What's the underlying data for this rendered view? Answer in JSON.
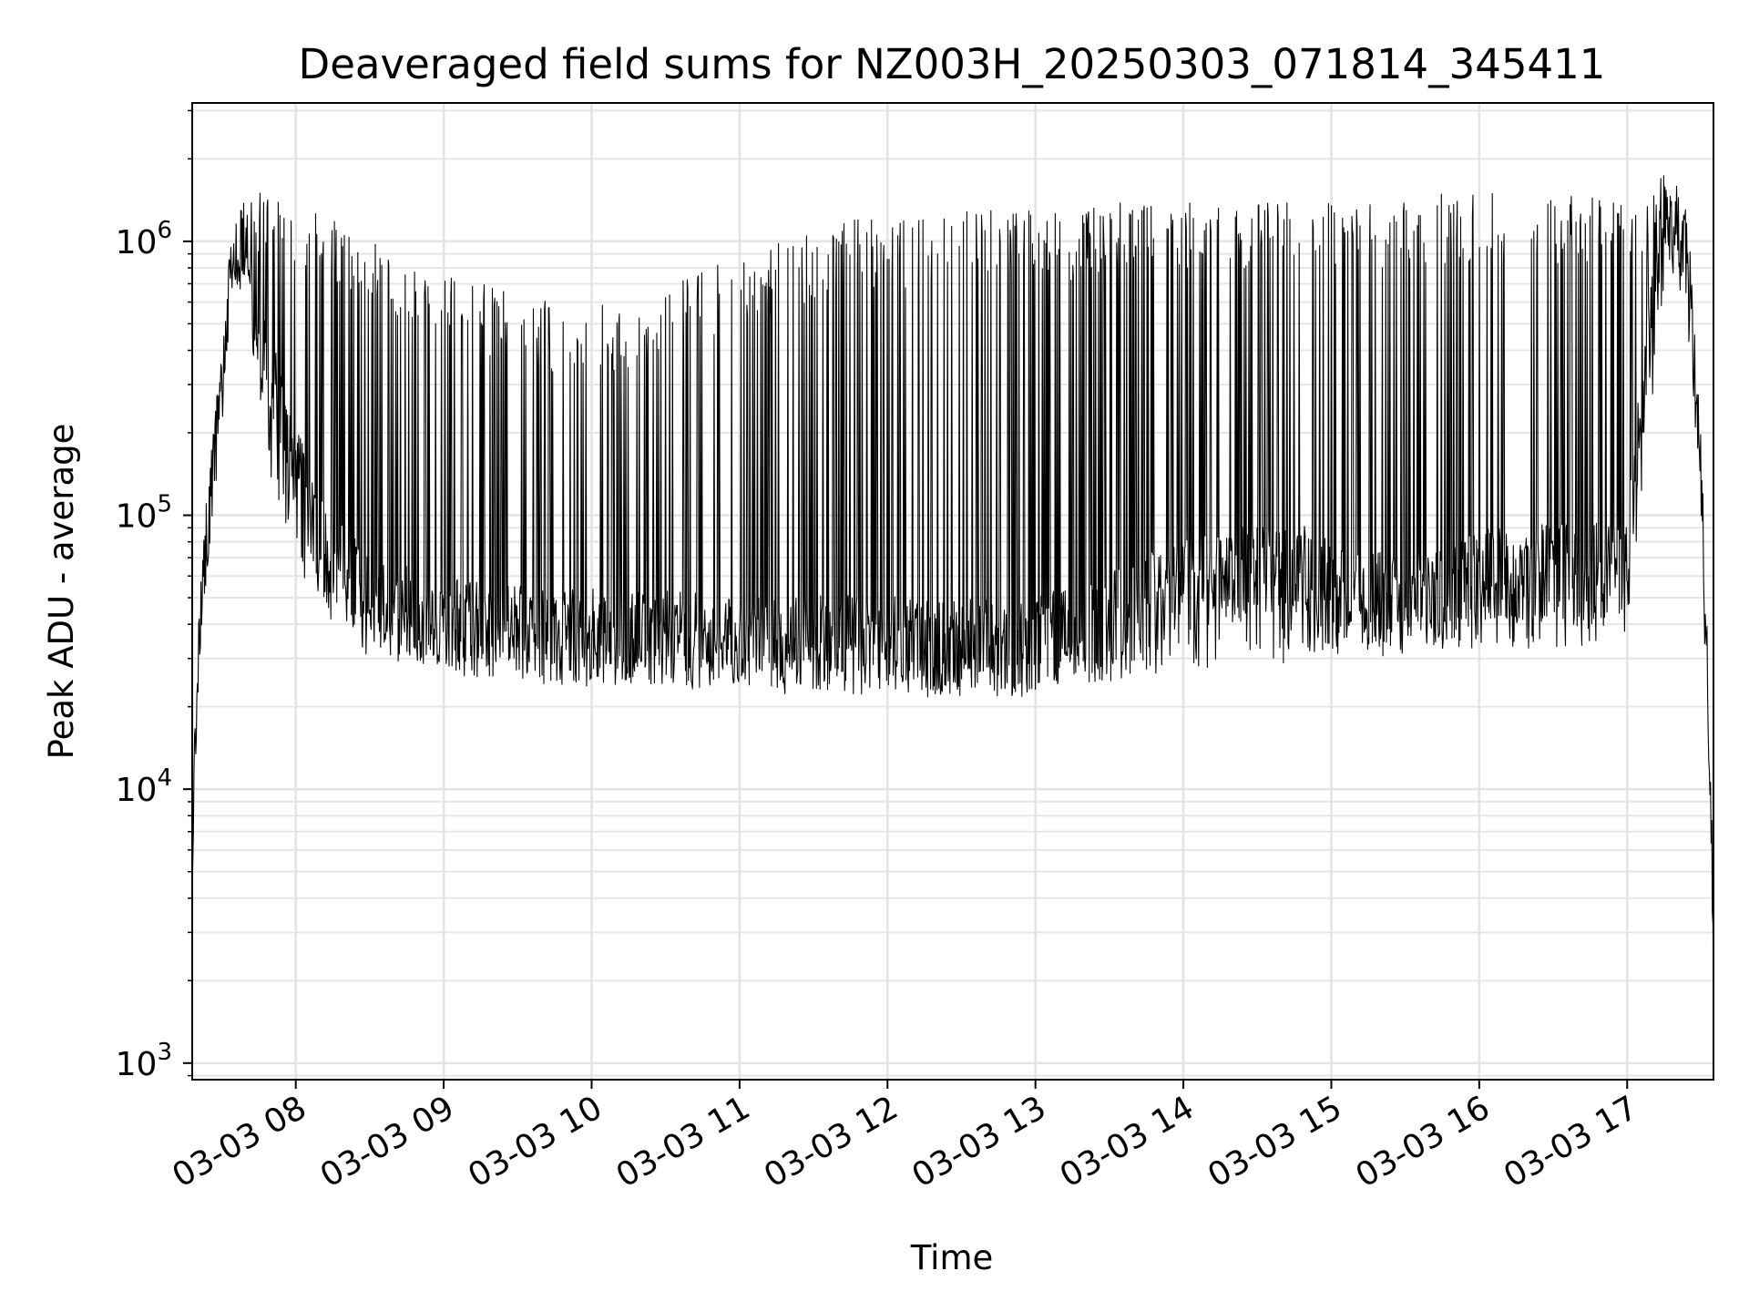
{
  "chart_data": {
    "type": "line",
    "title": "Deaveraged field sums for NZ003H_20250303_071814_345411",
    "xlabel": "Time",
    "ylabel": "Peak ADU - average",
    "yscale": "log",
    "grid": true,
    "line_color": "#000000",
    "x_ticks": [
      "03-03 08",
      "03-03 09",
      "03-03 10",
      "03-03 11",
      "03-03 12",
      "03-03 13",
      "03-03 14",
      "03-03 15",
      "03-03 16",
      "03-03 17"
    ],
    "y_ticks": [
      {
        "base": "10",
        "exp": "3"
      },
      {
        "base": "10",
        "exp": "4"
      },
      {
        "base": "10",
        "exp": "5"
      },
      {
        "base": "10",
        "exp": "6"
      }
    ],
    "xlim": [
      "2025-03-03 07:18",
      "2025-03-03 17:35"
    ],
    "ylim": [
      870,
      3200000
    ],
    "series": [
      {
        "x": [
          "07:18",
          "07:20",
          "07:22",
          "07:24",
          "07:26",
          "07:28",
          "07:30",
          "07:32",
          "07:34",
          "07:36",
          "07:38",
          "07:40",
          "07:42",
          "07:45",
          "07:50",
          "08:00",
          "08:10",
          "08:20",
          "08:30",
          "08:40",
          "08:50",
          "09:00",
          "09:15",
          "09:30",
          "09:45",
          "10:00",
          "10:15",
          "10:30",
          "10:45",
          "11:00",
          "11:15",
          "11:30",
          "11:45",
          "12:00",
          "12:15",
          "12:30",
          "12:45",
          "13:00",
          "13:15",
          "13:30",
          "13:45",
          "14:00",
          "14:15",
          "14:30",
          "14:45",
          "15:00",
          "15:15",
          "15:30",
          "15:45",
          "16:00",
          "16:15",
          "16:30",
          "16:45",
          "17:00",
          "17:05",
          "17:10",
          "17:15",
          "17:20",
          "17:25",
          "17:30",
          "17:32",
          "17:34",
          "17:35"
        ],
        "y_low": [
          5000,
          25000,
          40000,
          60000,
          100000,
          160000,
          250000,
          400000,
          600000,
          800000,
          850000,
          800000,
          300000,
          200000,
          150000,
          80000,
          50000,
          40000,
          35000,
          33000,
          32000,
          31000,
          30000,
          29000,
          28000,
          28000,
          28000,
          28000,
          27000,
          27000,
          26000,
          26000,
          26000,
          26000,
          25000,
          25000,
          25000,
          26000,
          28000,
          29000,
          30000,
          31000,
          32000,
          33000,
          34000,
          35000,
          36000,
          36000,
          37000,
          38000,
          38000,
          38000,
          39000,
          40000,
          100000,
          300000,
          700000,
          900000,
          500000,
          120000,
          30000,
          8000,
          1500
        ],
        "y_high": [
          7000,
          40000,
          70000,
          100000,
          180000,
          250000,
          400000,
          600000,
          900000,
          1100000,
          1200000,
          1300000,
          1400000,
          1500000,
          1600000,
          1500000,
          1300000,
          1100000,
          1000000,
          950000,
          900000,
          800000,
          700000,
          650000,
          600000,
          600000,
          600000,
          700000,
          800000,
          900000,
          1000000,
          1100000,
          1200000,
          1200000,
          1200000,
          1300000,
          1300000,
          1300000,
          1300000,
          1400000,
          1400000,
          1400000,
          1400000,
          1400000,
          1400000,
          1400000,
          1450000,
          1450000,
          1500000,
          1500000,
          1500000,
          1500000,
          1500000,
          1500000,
          1400000,
          1600000,
          1800000,
          1400000,
          700000,
          150000,
          40000,
          10000,
          1500
        ],
        "y_baseline": [
          5000,
          30000,
          50000,
          80000,
          130000,
          200000,
          300000,
          500000,
          700000,
          900000,
          950000,
          900000,
          600000,
          400000,
          300000,
          150000,
          80000,
          60000,
          50000,
          45000,
          42000,
          40000,
          38000,
          37000,
          36000,
          36000,
          36000,
          36000,
          35000,
          35000,
          34000,
          34000,
          34000,
          34000,
          33000,
          33000,
          33000,
          34000,
          38000,
          42000,
          48000,
          55000,
          60000,
          62000,
          64000,
          55000,
          50000,
          48000,
          50000,
          60000,
          62000,
          62000,
          62000,
          65000,
          200000,
          500000,
          1000000,
          1200000,
          800000,
          130000,
          35000,
          9000,
          1500
        ]
      }
    ]
  }
}
